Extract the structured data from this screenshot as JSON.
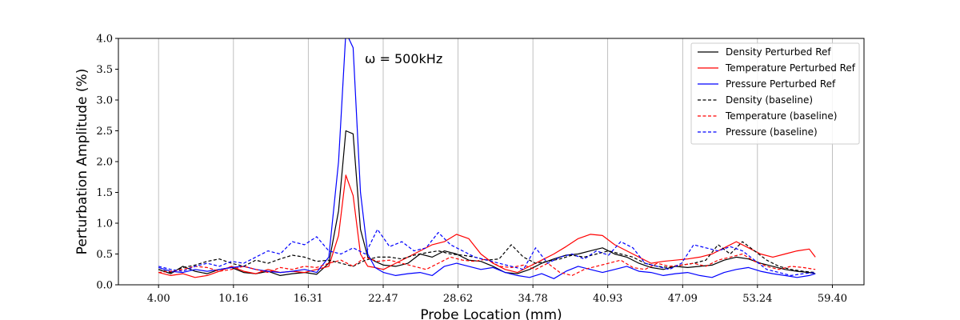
{
  "chart_data": {
    "type": "line",
    "title": "",
    "xlabel": "Probe Location (mm)",
    "ylabel": "Perturbation Amplitude (%)",
    "xlim": [
      0.7,
      62.0
    ],
    "ylim": [
      0,
      4.0
    ],
    "xticks": [
      4.0,
      10.16,
      16.31,
      22.47,
      28.62,
      34.78,
      40.93,
      47.09,
      53.24,
      59.4
    ],
    "xtick_labels": [
      "4.00",
      "10.16",
      "16.31",
      "22.47",
      "28.62",
      "34.78",
      "40.93",
      "47.09",
      "53.24",
      "59.40"
    ],
    "yticks": [
      0.0,
      0.5,
      1.0,
      1.5,
      2.0,
      2.5,
      3.0,
      3.5,
      4.0
    ],
    "ytick_labels": [
      "0.0",
      "0.5",
      "1.0",
      "1.5",
      "2.0",
      "2.5",
      "3.0",
      "3.5",
      "4.0"
    ],
    "grid": "vertical",
    "legend_position": "top-right",
    "annotation": {
      "text": "ω = 500kHz",
      "x": 21.1,
      "y": 3.65
    },
    "series": [
      {
        "name": "Density Perturbed Ref",
        "color": "#000000",
        "dash": "solid",
        "x": [
          4.0,
          5.0,
          6.0,
          7.0,
          8.0,
          9.0,
          10.0,
          11.0,
          12.0,
          13.0,
          14.0,
          15.0,
          16.0,
          17.0,
          18.0,
          18.8,
          19.4,
          20.0,
          20.6,
          21.2,
          21.8,
          22.5,
          23.5,
          24.5,
          25.5,
          26.5,
          27.5,
          28.5,
          29.5,
          30.5,
          31.5,
          32.5,
          33.5,
          34.5,
          35.5,
          36.5,
          37.5,
          38.5,
          39.5,
          40.5,
          41.5,
          42.5,
          43.5,
          44.5,
          45.5,
          46.5,
          47.5,
          48.5,
          49.5,
          50.5,
          51.5,
          52.5,
          53.5,
          54.5,
          55.5,
          56.5,
          57.5,
          58.0
        ],
        "y": [
          0.25,
          0.18,
          0.3,
          0.22,
          0.18,
          0.25,
          0.28,
          0.2,
          0.18,
          0.22,
          0.15,
          0.18,
          0.2,
          0.17,
          0.35,
          1.2,
          2.5,
          2.45,
          0.9,
          0.45,
          0.38,
          0.32,
          0.3,
          0.35,
          0.5,
          0.45,
          0.55,
          0.5,
          0.4,
          0.38,
          0.3,
          0.2,
          0.18,
          0.25,
          0.35,
          0.42,
          0.48,
          0.5,
          0.55,
          0.6,
          0.5,
          0.45,
          0.35,
          0.28,
          0.25,
          0.3,
          0.28,
          0.3,
          0.32,
          0.4,
          0.45,
          0.42,
          0.35,
          0.3,
          0.25,
          0.22,
          0.2,
          0.18
        ]
      },
      {
        "name": "Temperature Perturbed Ref",
        "color": "#ff0000",
        "dash": "solid",
        "x": [
          4.0,
          5.0,
          6.0,
          7.0,
          8.0,
          9.0,
          10.0,
          11.0,
          12.0,
          13.0,
          14.0,
          15.0,
          16.0,
          17.0,
          18.0,
          18.8,
          19.4,
          20.0,
          20.6,
          21.2,
          21.8,
          22.5,
          23.5,
          24.5,
          25.5,
          26.5,
          27.5,
          28.5,
          29.5,
          30.5,
          31.5,
          32.5,
          33.5,
          34.5,
          35.5,
          36.5,
          37.5,
          38.5,
          39.5,
          40.5,
          41.5,
          42.5,
          43.5,
          44.5,
          45.5,
          46.5,
          47.5,
          48.5,
          49.5,
          50.5,
          51.5,
          52.5,
          53.5,
          54.5,
          55.5,
          56.5,
          57.5,
          58.0
        ],
        "y": [
          0.2,
          0.15,
          0.18,
          0.12,
          0.15,
          0.22,
          0.3,
          0.22,
          0.18,
          0.25,
          0.2,
          0.22,
          0.2,
          0.25,
          0.3,
          0.8,
          1.78,
          1.45,
          0.5,
          0.3,
          0.28,
          0.25,
          0.35,
          0.45,
          0.55,
          0.65,
          0.7,
          0.82,
          0.75,
          0.5,
          0.35,
          0.25,
          0.2,
          0.3,
          0.4,
          0.5,
          0.62,
          0.75,
          0.82,
          0.8,
          0.65,
          0.55,
          0.45,
          0.35,
          0.38,
          0.4,
          0.42,
          0.45,
          0.5,
          0.6,
          0.7,
          0.6,
          0.5,
          0.45,
          0.5,
          0.55,
          0.58,
          0.45
        ]
      },
      {
        "name": "Pressure Perturbed Ref",
        "color": "#0000ff",
        "dash": "solid",
        "x": [
          4.0,
          5.0,
          6.0,
          7.0,
          8.0,
          9.0,
          10.0,
          11.0,
          12.0,
          13.0,
          14.0,
          15.0,
          16.0,
          17.0,
          18.0,
          18.8,
          19.4,
          20.0,
          20.6,
          21.2,
          21.8,
          22.5,
          23.5,
          24.5,
          25.5,
          26.5,
          27.5,
          28.5,
          29.5,
          30.5,
          31.5,
          32.5,
          33.5,
          34.5,
          35.5,
          36.5,
          37.5,
          38.5,
          39.5,
          40.5,
          41.5,
          42.5,
          43.5,
          44.5,
          45.5,
          46.5,
          47.5,
          48.5,
          49.5,
          50.5,
          51.5,
          52.5,
          53.5,
          54.5,
          55.5,
          56.5,
          57.5,
          58.0
        ],
        "y": [
          0.28,
          0.22,
          0.2,
          0.25,
          0.22,
          0.25,
          0.28,
          0.3,
          0.25,
          0.22,
          0.2,
          0.22,
          0.25,
          0.2,
          0.45,
          2.0,
          4.1,
          3.85,
          1.5,
          0.5,
          0.28,
          0.2,
          0.15,
          0.18,
          0.2,
          0.15,
          0.3,
          0.35,
          0.3,
          0.25,
          0.28,
          0.2,
          0.15,
          0.12,
          0.18,
          0.1,
          0.22,
          0.3,
          0.25,
          0.2,
          0.25,
          0.3,
          0.22,
          0.2,
          0.15,
          0.18,
          0.2,
          0.15,
          0.12,
          0.2,
          0.25,
          0.28,
          0.22,
          0.18,
          0.15,
          0.12,
          0.15,
          0.18
        ]
      },
      {
        "name": "Density (baseline)",
        "color": "#000000",
        "dash": "dashed",
        "x": [
          4.0,
          5.0,
          6.0,
          7.0,
          8.0,
          9.0,
          10.0,
          11.0,
          12.0,
          13.0,
          14.0,
          15.0,
          16.0,
          17.0,
          18.0,
          19.0,
          20.0,
          21.0,
          22.0,
          23.0,
          24.0,
          25.0,
          26.0,
          27.0,
          28.0,
          29.0,
          30.0,
          31.0,
          32.0,
          33.0,
          34.0,
          35.0,
          36.0,
          37.0,
          38.0,
          39.0,
          40.0,
          41.0,
          42.0,
          43.0,
          44.0,
          45.0,
          46.0,
          47.0,
          48.0,
          49.0,
          50.0,
          51.0,
          52.0,
          53.0,
          54.0,
          55.0,
          56.0,
          57.0,
          58.0
        ],
        "y": [
          0.25,
          0.2,
          0.28,
          0.32,
          0.38,
          0.42,
          0.35,
          0.3,
          0.4,
          0.35,
          0.42,
          0.48,
          0.45,
          0.38,
          0.4,
          0.35,
          0.3,
          0.4,
          0.45,
          0.45,
          0.42,
          0.48,
          0.52,
          0.55,
          0.5,
          0.48,
          0.45,
          0.4,
          0.42,
          0.65,
          0.45,
          0.35,
          0.38,
          0.42,
          0.48,
          0.45,
          0.5,
          0.55,
          0.5,
          0.45,
          0.35,
          0.3,
          0.28,
          0.32,
          0.35,
          0.4,
          0.65,
          0.5,
          0.7,
          0.55,
          0.4,
          0.3,
          0.25,
          0.22,
          0.2
        ]
      },
      {
        "name": "Temperature (baseline)",
        "color": "#ff0000",
        "dash": "dashed",
        "x": [
          4.0,
          5.0,
          6.0,
          7.0,
          8.0,
          9.0,
          10.0,
          11.0,
          12.0,
          13.0,
          14.0,
          15.0,
          16.0,
          17.0,
          18.0,
          19.0,
          20.0,
          21.0,
          22.0,
          23.0,
          24.0,
          25.0,
          26.0,
          27.0,
          28.0,
          29.0,
          30.0,
          31.0,
          32.0,
          33.0,
          34.0,
          35.0,
          36.0,
          37.0,
          38.0,
          39.0,
          40.0,
          41.0,
          42.0,
          43.0,
          44.0,
          45.0,
          46.0,
          47.0,
          48.0,
          49.0,
          50.0,
          51.0,
          52.0,
          53.0,
          54.0,
          55.0,
          56.0,
          57.0,
          58.0
        ],
        "y": [
          0.2,
          0.22,
          0.25,
          0.3,
          0.28,
          0.22,
          0.25,
          0.3,
          0.25,
          0.2,
          0.28,
          0.25,
          0.3,
          0.28,
          0.35,
          0.4,
          0.3,
          0.45,
          0.38,
          0.4,
          0.35,
          0.3,
          0.25,
          0.35,
          0.45,
          0.4,
          0.38,
          0.42,
          0.3,
          0.28,
          0.32,
          0.25,
          0.35,
          0.2,
          0.15,
          0.25,
          0.3,
          0.35,
          0.4,
          0.28,
          0.25,
          0.35,
          0.3,
          0.32,
          0.35,
          0.3,
          0.4,
          0.45,
          0.5,
          0.38,
          0.3,
          0.25,
          0.3,
          0.28,
          0.25
        ]
      },
      {
        "name": "Pressure (baseline)",
        "color": "#0000ff",
        "dash": "dashed",
        "x": [
          4.0,
          5.0,
          6.0,
          7.0,
          8.0,
          9.0,
          10.0,
          11.0,
          12.0,
          13.0,
          14.0,
          15.0,
          16.0,
          17.0,
          18.0,
          19.0,
          20.0,
          21.0,
          22.0,
          23.0,
          24.0,
          25.0,
          26.0,
          27.0,
          28.0,
          29.0,
          30.0,
          31.0,
          32.0,
          33.0,
          34.0,
          35.0,
          36.0,
          37.0,
          38.0,
          39.0,
          40.0,
          41.0,
          42.0,
          43.0,
          44.0,
          45.0,
          46.0,
          47.0,
          48.0,
          49.0,
          50.0,
          51.0,
          52.0,
          53.0,
          54.0,
          55.0,
          56.0,
          57.0,
          58.0
        ],
        "y": [
          0.3,
          0.25,
          0.22,
          0.3,
          0.35,
          0.3,
          0.38,
          0.35,
          0.45,
          0.55,
          0.5,
          0.7,
          0.65,
          0.78,
          0.55,
          0.5,
          0.6,
          0.5,
          0.9,
          0.62,
          0.7,
          0.55,
          0.6,
          0.85,
          0.65,
          0.55,
          0.45,
          0.4,
          0.35,
          0.3,
          0.25,
          0.6,
          0.35,
          0.45,
          0.5,
          0.42,
          0.55,
          0.48,
          0.7,
          0.6,
          0.35,
          0.3,
          0.25,
          0.35,
          0.65,
          0.6,
          0.55,
          0.62,
          0.55,
          0.4,
          0.25,
          0.2,
          0.15,
          0.18,
          0.2
        ]
      }
    ]
  }
}
